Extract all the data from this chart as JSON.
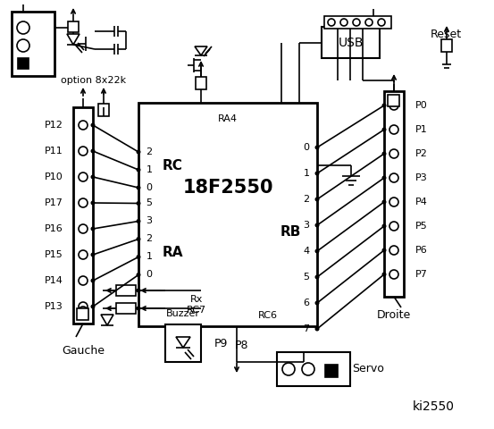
{
  "bg_color": "#ffffff",
  "left_labels": [
    "P12",
    "P11",
    "P10",
    "P17",
    "P16",
    "P15",
    "P14",
    "P13"
  ],
  "right_labels": [
    "P0",
    "P1",
    "P2",
    "P3",
    "P4",
    "P5",
    "P6",
    "P7"
  ],
  "rc_pins": [
    "2",
    "1",
    "0"
  ],
  "ra_pins": [
    "5",
    "3",
    "2",
    "1",
    "0"
  ],
  "rb_pins": [
    "0",
    "1",
    "2",
    "3",
    "4",
    "5",
    "6",
    "7"
  ],
  "label_gauche": "Gauche",
  "label_droite": "Droite",
  "label_servo": "Servo",
  "label_buzzer": "Buzzer",
  "label_usb": "USB",
  "label_reset": "Reset",
  "label_option": "option 8x22k",
  "label_p8": "P8",
  "label_p9": "P9",
  "label_ki2550": "ki2550",
  "label_ra4": "RA4",
  "label_18f2550": "18F2550",
  "label_rc": "RC",
  "label_ra": "RA",
  "label_rb": "RB",
  "label_rx": "Rx",
  "label_rc7": "RC7",
  "label_rc6": "RC6"
}
